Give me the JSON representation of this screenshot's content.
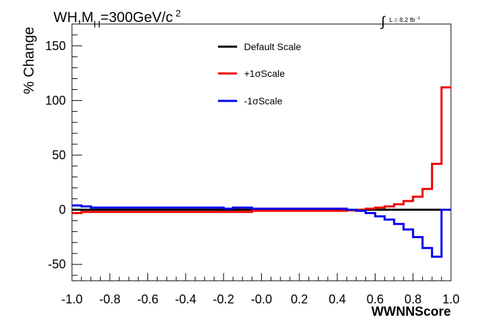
{
  "chart_data": {
    "type": "line",
    "title_main": "WH,M",
    "title_sub": "H",
    "title_rest": "=300GeV/c",
    "title_sup": "2",
    "lumi_prefix": "L = 8.2 fb",
    "lumi_sup": "-1",
    "xlabel": "WWNNScore",
    "ylabel": "% Change",
    "xlim": [
      -1.0,
      1.0
    ],
    "ylim": [
      -65,
      170
    ],
    "x_ticks": [
      -1.0,
      -0.8,
      -0.6,
      -0.4,
      -0.2,
      0.0,
      0.2,
      0.4,
      0.6,
      0.8,
      1.0
    ],
    "x_tick_labels": [
      "-1.0",
      "-0.8",
      "-0.6",
      "-0.4",
      "-0.2",
      "-0.0",
      "0.2",
      "0.4",
      "0.6",
      "0.8",
      "1.0"
    ],
    "y_ticks": [
      -50,
      0,
      50,
      100,
      150
    ],
    "y_tick_labels": [
      "-50",
      "0",
      "50",
      "100",
      "150"
    ],
    "bin_edges": [
      -1.0,
      -0.95,
      -0.9,
      -0.85,
      -0.8,
      -0.75,
      -0.7,
      -0.65,
      -0.6,
      -0.55,
      -0.5,
      -0.45,
      -0.4,
      -0.35,
      -0.3,
      -0.25,
      -0.2,
      -0.15,
      -0.1,
      -0.05,
      0.0,
      0.05,
      0.1,
      0.15,
      0.2,
      0.25,
      0.3,
      0.35,
      0.4,
      0.45,
      0.5,
      0.55,
      0.6,
      0.65,
      0.7,
      0.75,
      0.8,
      0.85,
      0.9,
      0.95,
      1.0
    ],
    "legend_position": "top-center",
    "series": [
      {
        "name": "Default Scale",
        "color": "#000000",
        "values": [
          0,
          0,
          0,
          0,
          0,
          0,
          0,
          0,
          0,
          0,
          0,
          0,
          0,
          0,
          0,
          0,
          0,
          0,
          0,
          0,
          0,
          0,
          0,
          0,
          0,
          0,
          0,
          0,
          0,
          0,
          0,
          0,
          0,
          0,
          0,
          0,
          0,
          0,
          0,
          0
        ]
      },
      {
        "name": "+1σScale",
        "color": "#ee0000",
        "values": [
          -3,
          -2,
          -2,
          -2,
          -2,
          -2,
          -2,
          -2,
          -2,
          -2,
          -2,
          -2,
          -2,
          -2,
          -2,
          -2,
          -2,
          -2,
          -2,
          -1,
          -1,
          -1,
          -1,
          -1,
          -1,
          -1,
          -1,
          -1,
          -1,
          -0.5,
          0,
          1,
          2,
          3,
          5,
          8,
          12,
          19,
          42,
          112
        ]
      },
      {
        "name": "-1σScale",
        "color": "#0000ee",
        "values": [
          4,
          3,
          2,
          2,
          2,
          2,
          2,
          2,
          2,
          2,
          2,
          2,
          2,
          2,
          2,
          2,
          1,
          2,
          2,
          1,
          1,
          1,
          1,
          1,
          1,
          1,
          1,
          1,
          1,
          0,
          -1,
          -3,
          -6,
          -9,
          -13,
          -18,
          -25,
          -35,
          -43,
          0
        ]
      }
    ]
  }
}
